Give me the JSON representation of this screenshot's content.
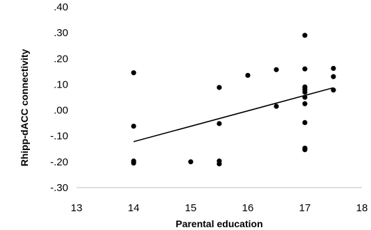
{
  "chart_data": {
    "type": "scatter",
    "title": "",
    "xlabel": "Parental education",
    "ylabel": "Rhipp-dACC connectivity",
    "xlim": [
      13,
      18
    ],
    "ylim": [
      -0.3,
      0.4
    ],
    "x_ticks": [
      13,
      14,
      15,
      16,
      17,
      18
    ],
    "x_tick_labels": [
      "13",
      "14",
      "15",
      "16",
      "17",
      "18"
    ],
    "y_ticks": [
      -0.3,
      -0.2,
      -0.1,
      0.0,
      0.1,
      0.2,
      0.3,
      0.4
    ],
    "y_tick_labels": [
      "-.30",
      "-.20",
      "-.10",
      ".00",
      ".10",
      ".20",
      ".30",
      ".40"
    ],
    "grid": false,
    "legend": "none",
    "point_color": "#000000",
    "series": [
      {
        "x": [
          14,
          14,
          14,
          14,
          15,
          15.5,
          15.5,
          15.5,
          15.5,
          16,
          16.5,
          16.5,
          17,
          17,
          17,
          17,
          17,
          17,
          17,
          17,
          17,
          17,
          17.5,
          17.5,
          17.5
        ],
        "y": [
          0.145,
          -0.062,
          -0.197,
          -0.205,
          -0.2,
          0.088,
          -0.052,
          -0.197,
          -0.208,
          0.135,
          0.157,
          0.015,
          0.29,
          0.16,
          0.09,
          0.08,
          0.07,
          0.05,
          0.025,
          -0.048,
          -0.147,
          -0.153,
          0.162,
          0.13,
          0.078
        ]
      }
    ],
    "trendline": {
      "type": "linear",
      "x": [
        14,
        17.5
      ],
      "y": [
        -0.122,
        0.087
      ]
    }
  }
}
